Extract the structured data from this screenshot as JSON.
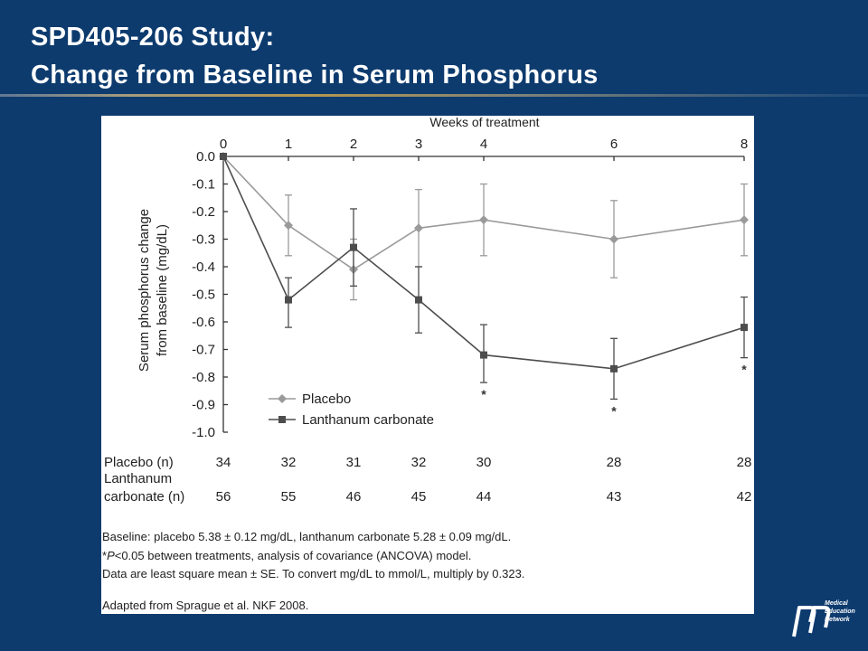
{
  "slide": {
    "title_line1": "SPD405-206 Study:",
    "title_line2": "Change from Baseline in Serum Phosphorus"
  },
  "chart_data": {
    "type": "line",
    "title": "",
    "xlabel": "Weeks of treatment",
    "ylabel_line1": "Serum phosphorus change",
    "ylabel_line2": "from baseline (mg/dL)",
    "x": [
      0,
      1,
      2,
      3,
      4,
      6,
      8
    ],
    "x_tick_labels": [
      "0",
      "1",
      "2",
      "3",
      "4",
      "6",
      "8"
    ],
    "ylim": [
      -1.0,
      0.0
    ],
    "y_ticks": [
      0.0,
      -0.1,
      -0.2,
      -0.3,
      -0.4,
      -0.5,
      -0.6,
      -0.7,
      -0.8,
      -0.9,
      -1.0
    ],
    "y_tick_labels": [
      "0.0",
      "-0.1",
      "-0.2",
      "-0.3",
      "-0.4",
      "-0.5",
      "-0.6",
      "-0.7",
      "-0.8",
      "-0.9",
      "-1.0"
    ],
    "grid": false,
    "legend_position": "bottom-left",
    "series": [
      {
        "name": "Placebo",
        "color": "#9a9a9a",
        "marker": "diamond",
        "values": [
          0.0,
          -0.25,
          -0.41,
          -0.26,
          -0.23,
          -0.3,
          -0.23
        ],
        "err_upper": [
          0.0,
          -0.14,
          -0.3,
          -0.12,
          -0.1,
          -0.16,
          -0.1
        ],
        "err_lower": [
          0.0,
          -0.36,
          -0.52,
          -0.4,
          -0.36,
          -0.44,
          -0.36
        ]
      },
      {
        "name": "Lanthanum carbonate",
        "color": "#4d4d4d",
        "marker": "square",
        "values": [
          0.0,
          -0.52,
          -0.33,
          -0.52,
          -0.72,
          -0.77,
          -0.62
        ],
        "err_upper": [
          0.0,
          -0.44,
          -0.19,
          -0.4,
          -0.61,
          -0.66,
          -0.51
        ],
        "err_lower": [
          0.0,
          -0.62,
          -0.47,
          -0.64,
          -0.82,
          -0.88,
          -0.73
        ]
      }
    ],
    "significance_markers": [
      {
        "x": 4,
        "label": "*"
      },
      {
        "x": 6,
        "label": "*"
      },
      {
        "x": 8,
        "label": "*"
      }
    ],
    "n_table": {
      "placebo_label": "Placebo (n)",
      "lanthanum_label_line1": "Lanthanum",
      "lanthanum_label_line2": "carbonate (n)",
      "placebo_n": [
        "34",
        "32",
        "31",
        "32",
        "30",
        "28",
        "28"
      ],
      "lanthanum_n": [
        "56",
        "55",
        "46",
        "45",
        "44",
        "43",
        "42"
      ]
    },
    "footnotes": {
      "baseline": "Baseline: placebo 5.38 ± 0.12 mg/dL, lanthanum carbonate 5.28 ± 0.09 mg/dL.",
      "significance_prefix": "*",
      "significance_p": "P",
      "significance_rest": "<0.05 between treatments, analysis of covariance (ANCOVA) model.",
      "data_note": "Data are least square mean ± SE. To convert mg/dL to mmol/L, multiply by 0.323.",
      "source": "Adapted from Sprague et al. NKF 2008."
    }
  },
  "logo": {
    "text_line1": "Medical",
    "text_line2": "Education",
    "text_line3": "Network"
  }
}
